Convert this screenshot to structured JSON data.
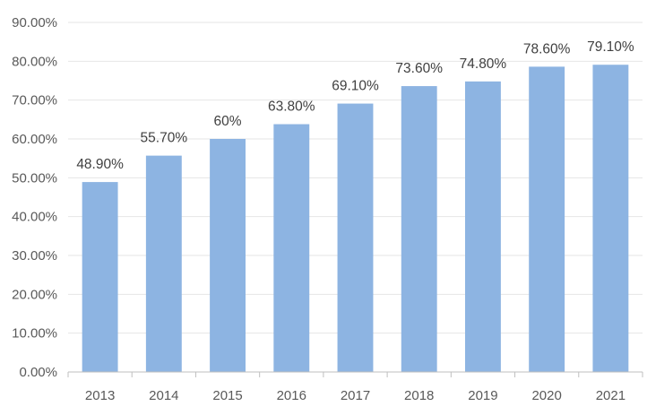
{
  "chart_data": {
    "type": "bar",
    "title": "",
    "xlabel": "",
    "ylabel": "",
    "categories": [
      "2013",
      "2014",
      "2015",
      "2016",
      "2017",
      "2018",
      "2019",
      "2020",
      "2021"
    ],
    "values": [
      48.9,
      55.7,
      60,
      63.8,
      69.1,
      73.6,
      74.8,
      78.6,
      79.1
    ],
    "data_labels": [
      "48.90%",
      "55.70%",
      "60%",
      "63.80%",
      "69.10%",
      "73.60%",
      "74.80%",
      "78.60%",
      "79.10%"
    ],
    "ylim": [
      0,
      90
    ],
    "y_ticks": [
      0,
      10,
      20,
      30,
      40,
      50,
      60,
      70,
      80,
      90
    ],
    "y_tick_labels": [
      "0.00%",
      "10.00%",
      "20.00%",
      "30.00%",
      "40.00%",
      "50.00%",
      "60.00%",
      "70.00%",
      "80.00%",
      "90.00%"
    ],
    "grid": true,
    "legend": "none",
    "bar_color": "#8db4e2"
  }
}
